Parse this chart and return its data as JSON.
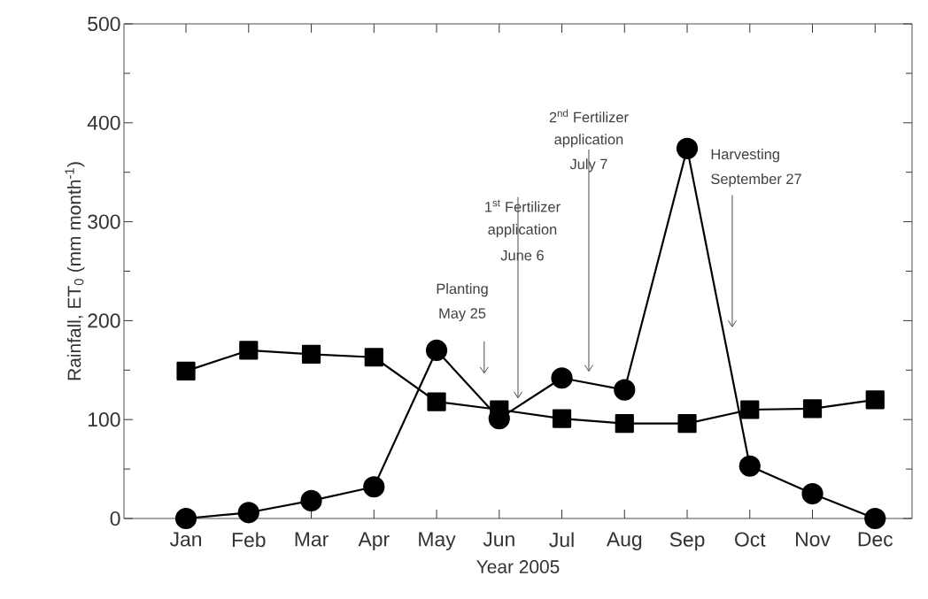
{
  "chart_data": {
    "type": "line",
    "xlabel": "Year 2005",
    "ylabel": "Rainfall, ET$_{0}$ (mm month$^{-1}$)",
    "categories": [
      "Jan",
      "Feb",
      "Mar",
      "Apr",
      "May",
      "Jun",
      "Jul",
      "Aug",
      "Sep",
      "Oct",
      "Nov",
      "Dec"
    ],
    "series": [
      {
        "color": "#000000",
        "marker": "circle",
        "values": [
          0,
          6,
          18,
          32,
          170,
          101,
          142,
          130,
          374,
          53,
          25,
          0
        ]
      },
      {
        "color": "#000000",
        "marker": "square",
        "values": [
          149,
          170,
          166,
          163,
          118,
          110,
          101,
          96,
          96,
          110,
          111,
          120
        ]
      }
    ],
    "ylim": [
      0,
      500
    ],
    "yticks": [
      0,
      100,
      200,
      300,
      400,
      500
    ],
    "grid": false,
    "line_style": "solid",
    "annotations": [
      "Planting",
      "May 25",
      "1$^{st}$ Fertilizer",
      "application",
      "June 6",
      "2$^{nd}$ Fertilizer",
      "application",
      "July 7",
      "Harvesting",
      "September 27"
    ]
  }
}
